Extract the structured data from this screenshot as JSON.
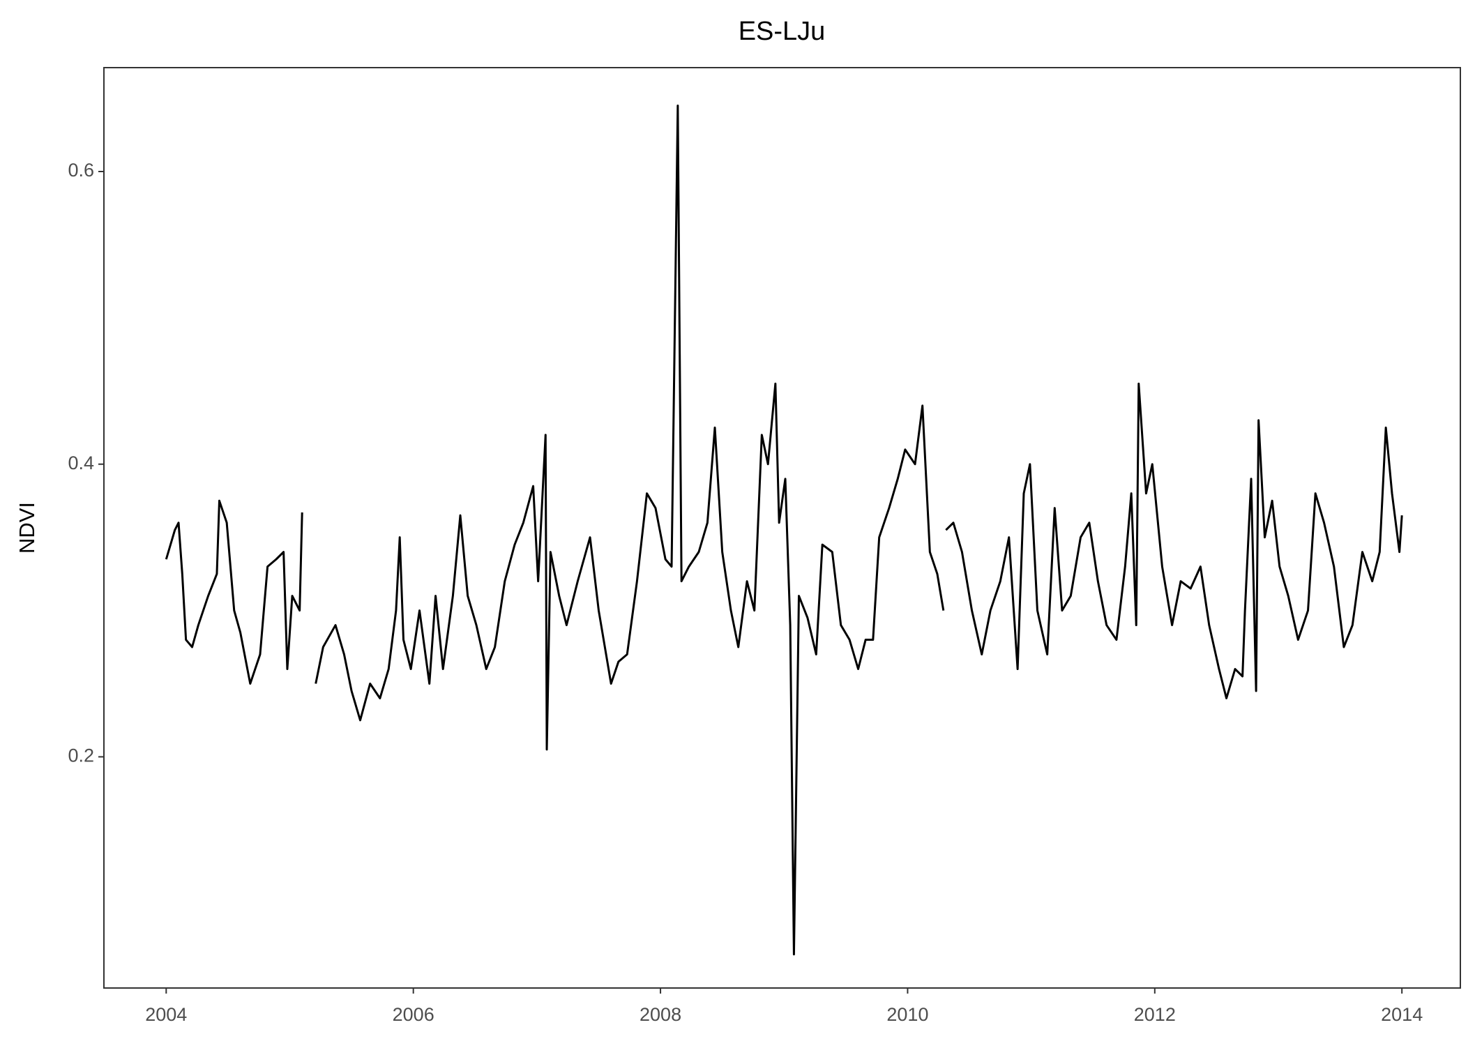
{
  "chart_data": {
    "type": "line",
    "title": "ES-LJu",
    "ylabel": "NDVI",
    "x": [
      2004.0,
      2004.07,
      2004.1,
      2004.13,
      2004.16,
      2004.21,
      2004.26,
      2004.34,
      2004.41,
      2004.43,
      2004.49,
      2004.55,
      2004.6,
      2004.68,
      2004.76,
      2004.82,
      2004.89,
      2004.95,
      2004.98,
      2005.02,
      2005.08,
      2005.1,
      2005.15,
      2005.21,
      2005.27,
      2005.37,
      2005.44,
      2005.5,
      2005.57,
      2005.65,
      2005.73,
      2005.8,
      2005.86,
      2005.89,
      2005.92,
      2005.98,
      2006.05,
      2006.13,
      2006.18,
      2006.24,
      2006.32,
      2006.38,
      2006.44,
      2006.51,
      2006.59,
      2006.66,
      2006.74,
      2006.82,
      2006.89,
      2006.97,
      2007.01,
      2007.07,
      2007.08,
      2007.11,
      2007.18,
      2007.24,
      2007.33,
      2007.43,
      2007.5,
      2007.6,
      2007.66,
      2007.73,
      2007.81,
      2007.89,
      2007.96,
      2008.04,
      2008.09,
      2008.14,
      2008.17,
      2008.23,
      2008.31,
      2008.38,
      2008.44,
      2008.5,
      2008.57,
      2008.63,
      2008.7,
      2008.76,
      2008.82,
      2008.87,
      2008.93,
      2008.96,
      2009.01,
      2009.05,
      2009.08,
      2009.12,
      2009.19,
      2009.26,
      2009.31,
      2009.39,
      2009.46,
      2009.53,
      2009.6,
      2009.66,
      2009.72,
      2009.77,
      2009.85,
      2009.92,
      2009.98,
      2010.06,
      2010.12,
      2010.18,
      2010.24,
      2010.29,
      2010.3,
      2010.31,
      2010.37,
      2010.44,
      2010.52,
      2010.6,
      2010.67,
      2010.75,
      2010.82,
      2010.89,
      2010.94,
      2010.99,
      2011.05,
      2011.13,
      2011.19,
      2011.25,
      2011.32,
      2011.4,
      2011.47,
      2011.54,
      2011.61,
      2011.69,
      2011.76,
      2011.81,
      2011.85,
      2011.87,
      2011.93,
      2011.98,
      2012.06,
      2012.14,
      2012.21,
      2012.29,
      2012.37,
      2012.44,
      2012.52,
      2012.58,
      2012.65,
      2012.71,
      2012.73,
      2012.78,
      2012.82,
      2012.84,
      2012.89,
      2012.95,
      2013.01,
      2013.08,
      2013.16,
      2013.24,
      2013.3,
      2013.37,
      2013.45,
      2013.53,
      2013.6,
      2013.68,
      2013.76,
      2013.82,
      2013.87,
      2013.92,
      2013.98,
      2014.0
    ],
    "values": [
      0.335,
      0.355,
      0.36,
      0.325,
      0.28,
      0.275,
      0.29,
      0.31,
      0.325,
      0.375,
      0.36,
      0.3,
      0.285,
      0.25,
      0.27,
      0.33,
      0.335,
      0.34,
      0.26,
      0.31,
      0.3,
      0.367,
      null,
      0.25,
      0.275,
      0.29,
      0.27,
      0.245,
      0.225,
      0.25,
      0.24,
      0.26,
      0.3,
      0.35,
      0.28,
      0.26,
      0.3,
      0.25,
      0.31,
      0.26,
      0.31,
      0.365,
      0.31,
      0.29,
      0.26,
      0.275,
      0.32,
      0.345,
      0.36,
      0.385,
      0.32,
      0.42,
      0.205,
      0.34,
      0.31,
      0.29,
      0.32,
      0.35,
      0.3,
      0.25,
      0.265,
      0.27,
      0.32,
      0.38,
      0.37,
      0.335,
      0.33,
      0.645,
      0.32,
      0.33,
      0.34,
      0.36,
      0.425,
      0.34,
      0.3,
      0.275,
      0.32,
      0.3,
      0.42,
      0.4,
      0.455,
      0.36,
      0.39,
      0.29,
      0.065,
      0.31,
      0.295,
      0.27,
      0.345,
      0.34,
      0.29,
      0.28,
      0.26,
      0.28,
      0.28,
      0.35,
      0.37,
      0.39,
      0.41,
      0.4,
      0.44,
      0.34,
      0.325,
      0.3,
      null,
      0.355,
      0.36,
      0.34,
      0.3,
      0.27,
      0.3,
      0.32,
      0.35,
      0.26,
      0.38,
      0.4,
      0.3,
      0.27,
      0.37,
      0.3,
      0.31,
      0.35,
      0.36,
      0.32,
      0.29,
      0.28,
      0.33,
      0.38,
      0.29,
      0.455,
      0.38,
      0.4,
      0.33,
      0.29,
      0.32,
      0.315,
      0.33,
      0.29,
      0.26,
      0.24,
      0.26,
      0.255,
      0.3,
      0.39,
      0.245,
      0.43,
      0.35,
      0.375,
      0.33,
      0.31,
      0.28,
      0.3,
      0.38,
      0.36,
      0.33,
      0.275,
      0.29,
      0.34,
      0.32,
      0.34,
      0.425,
      0.38,
      0.34,
      0.365
    ],
    "color": "#000000",
    "xlim": [
      2003.496,
      2014.473
    ],
    "xticks": [
      2004,
      2006,
      2008,
      2010,
      2012,
      2014
    ],
    "ylim": [
      0.042,
      0.671
    ],
    "yticks": [
      0.2,
      0.4,
      0.6
    ],
    "grid": false
  }
}
